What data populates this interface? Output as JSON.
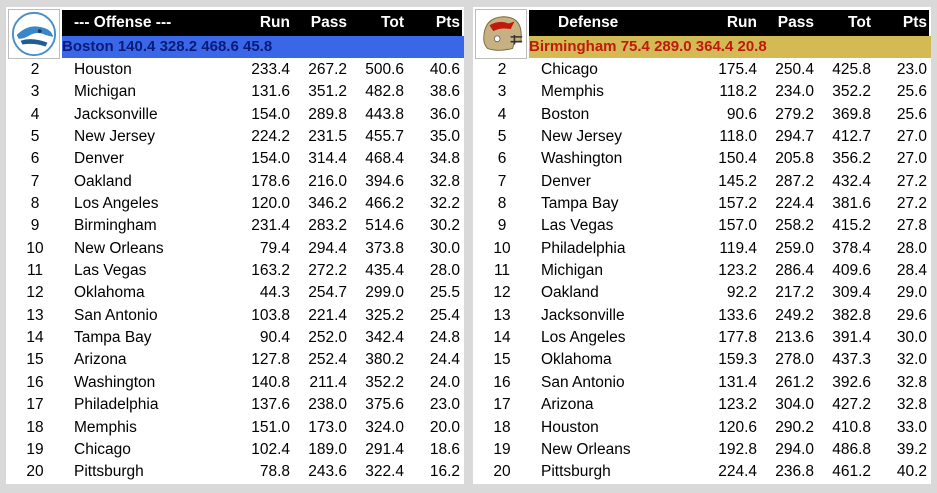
{
  "offense": {
    "logo_icon": "boston-team-logo-icon",
    "header": {
      "title": "--- Offense ---",
      "run": "Run",
      "pass": "Pass",
      "tot": "Tot",
      "pts": "Pts"
    },
    "highlight": {
      "team": "Boston",
      "run": "140.4",
      "pass": "328.2",
      "tot": "468.6",
      "pts": "45.8",
      "bg_color": "#3a66e8",
      "text_color": "#0a1a7a"
    },
    "rows": [
      {
        "rank": "2",
        "team": "Houston",
        "run": "233.4",
        "pass": "267.2",
        "tot": "500.6",
        "pts": "40.6"
      },
      {
        "rank": "3",
        "team": "Michigan",
        "run": "131.6",
        "pass": "351.2",
        "tot": "482.8",
        "pts": "38.6"
      },
      {
        "rank": "4",
        "team": "Jacksonville",
        "run": "154.0",
        "pass": "289.8",
        "tot": "443.8",
        "pts": "36.0"
      },
      {
        "rank": "5",
        "team": "New Jersey",
        "run": "224.2",
        "pass": "231.5",
        "tot": "455.7",
        "pts": "35.0"
      },
      {
        "rank": "6",
        "team": "Denver",
        "run": "154.0",
        "pass": "314.4",
        "tot": "468.4",
        "pts": "34.8"
      },
      {
        "rank": "7",
        "team": "Oakland",
        "run": "178.6",
        "pass": "216.0",
        "tot": "394.6",
        "pts": "32.8"
      },
      {
        "rank": "8",
        "team": "Los Angeles",
        "run": "120.0",
        "pass": "346.2",
        "tot": "466.2",
        "pts": "32.2"
      },
      {
        "rank": "9",
        "team": "Birmingham",
        "run": "231.4",
        "pass": "283.2",
        "tot": "514.6",
        "pts": "30.2"
      },
      {
        "rank": "10",
        "team": "New Orleans",
        "run": "79.4",
        "pass": "294.4",
        "tot": "373.8",
        "pts": "30.0"
      },
      {
        "rank": "11",
        "team": "Las Vegas",
        "run": "163.2",
        "pass": "272.2",
        "tot": "435.4",
        "pts": "28.0"
      },
      {
        "rank": "12",
        "team": "Oklahoma",
        "run": "44.3",
        "pass": "254.7",
        "tot": "299.0",
        "pts": "25.5"
      },
      {
        "rank": "13",
        "team": "San Antonio",
        "run": "103.8",
        "pass": "221.4",
        "tot": "325.2",
        "pts": "25.4"
      },
      {
        "rank": "14",
        "team": "Tampa Bay",
        "run": "90.4",
        "pass": "252.0",
        "tot": "342.4",
        "pts": "24.8"
      },
      {
        "rank": "15",
        "team": "Arizona",
        "run": "127.8",
        "pass": "252.4",
        "tot": "380.2",
        "pts": "24.4"
      },
      {
        "rank": "16",
        "team": "Washington",
        "run": "140.8",
        "pass": "211.4",
        "tot": "352.2",
        "pts": "24.0"
      },
      {
        "rank": "17",
        "team": "Philadelphia",
        "run": "137.6",
        "pass": "238.0",
        "tot": "375.6",
        "pts": "23.0"
      },
      {
        "rank": "18",
        "team": "Memphis",
        "run": "151.0",
        "pass": "173.0",
        "tot": "324.0",
        "pts": "20.0"
      },
      {
        "rank": "19",
        "team": "Chicago",
        "run": "102.4",
        "pass": "189.0",
        "tot": "291.4",
        "pts": "18.6"
      },
      {
        "rank": "20",
        "team": "Pittsburgh",
        "run": "78.8",
        "pass": "243.6",
        "tot": "322.4",
        "pts": "16.2"
      }
    ]
  },
  "defense": {
    "logo_icon": "birmingham-helmet-logo-icon",
    "header": {
      "title": "Defense",
      "run": "Run",
      "pass": "Pass",
      "tot": "Tot",
      "pts": "Pts"
    },
    "highlight": {
      "team": "Birmingham",
      "run": "75.4",
      "pass": "289.0",
      "tot": "364.4",
      "pts": "20.8",
      "bg_color": "#d4ba55",
      "text_color": "#c0190d"
    },
    "rows": [
      {
        "rank": "2",
        "team": "Chicago",
        "run": "175.4",
        "pass": "250.4",
        "tot": "425.8",
        "pts": "23.0"
      },
      {
        "rank": "3",
        "team": "Memphis",
        "run": "118.2",
        "pass": "234.0",
        "tot": "352.2",
        "pts": "25.6"
      },
      {
        "rank": "4",
        "team": "Boston",
        "run": "90.6",
        "pass": "279.2",
        "tot": "369.8",
        "pts": "25.6"
      },
      {
        "rank": "5",
        "team": "New Jersey",
        "run": "118.0",
        "pass": "294.7",
        "tot": "412.7",
        "pts": "27.0"
      },
      {
        "rank": "6",
        "team": "Washington",
        "run": "150.4",
        "pass": "205.8",
        "tot": "356.2",
        "pts": "27.0"
      },
      {
        "rank": "7",
        "team": "Denver",
        "run": "145.2",
        "pass": "287.2",
        "tot": "432.4",
        "pts": "27.2"
      },
      {
        "rank": "8",
        "team": "Tampa Bay",
        "run": "157.2",
        "pass": "224.4",
        "tot": "381.6",
        "pts": "27.2"
      },
      {
        "rank": "9",
        "team": "Las Vegas",
        "run": "157.0",
        "pass": "258.2",
        "tot": "415.2",
        "pts": "27.8"
      },
      {
        "rank": "10",
        "team": "Philadelphia",
        "run": "119.4",
        "pass": "259.0",
        "tot": "378.4",
        "pts": "28.0"
      },
      {
        "rank": "11",
        "team": "Michigan",
        "run": "123.2",
        "pass": "286.4",
        "tot": "409.6",
        "pts": "28.4"
      },
      {
        "rank": "12",
        "team": "Oakland",
        "run": "92.2",
        "pass": "217.2",
        "tot": "309.4",
        "pts": "29.0"
      },
      {
        "rank": "13",
        "team": "Jacksonville",
        "run": "133.6",
        "pass": "249.2",
        "tot": "382.8",
        "pts": "29.6"
      },
      {
        "rank": "14",
        "team": "Los Angeles",
        "run": "177.8",
        "pass": "213.6",
        "tot": "391.4",
        "pts": "30.0"
      },
      {
        "rank": "15",
        "team": "Oklahoma",
        "run": "159.3",
        "pass": "278.0",
        "tot": "437.3",
        "pts": "32.0"
      },
      {
        "rank": "16",
        "team": "San Antonio",
        "run": "131.4",
        "pass": "261.2",
        "tot": "392.6",
        "pts": "32.8"
      },
      {
        "rank": "17",
        "team": "Arizona",
        "run": "123.2",
        "pass": "304.0",
        "tot": "427.2",
        "pts": "32.8"
      },
      {
        "rank": "18",
        "team": "Houston",
        "run": "120.6",
        "pass": "290.2",
        "tot": "410.8",
        "pts": "33.0"
      },
      {
        "rank": "19",
        "team": "New Orleans",
        "run": "192.8",
        "pass": "294.0",
        "tot": "486.8",
        "pts": "39.2"
      },
      {
        "rank": "20",
        "team": "Pittsburgh",
        "run": "224.4",
        "pass": "236.8",
        "tot": "461.2",
        "pts": "40.2"
      }
    ]
  }
}
